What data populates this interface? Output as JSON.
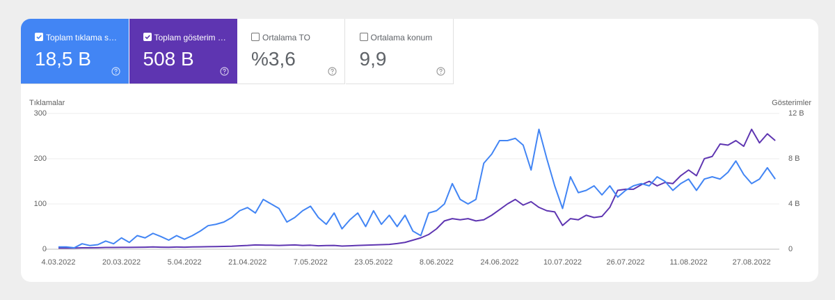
{
  "metrics": [
    {
      "label": "Toplam tıklama s…",
      "value": "18,5 B",
      "checked": true,
      "color": "#4285f4"
    },
    {
      "label": "Toplam gösterim …",
      "value": "508 B",
      "checked": true,
      "color": "#5e35b1"
    },
    {
      "label": "Ortalama TO",
      "value": "%3,6",
      "checked": false
    },
    {
      "label": "Ortalama konum",
      "value": "9,9",
      "checked": false
    }
  ],
  "chart_data": {
    "type": "line",
    "ylabel": "Tıklamalar",
    "y2label": "Gösterimler",
    "categories": [
      "4.03.2022",
      null,
      null,
      null,
      null,
      null,
      null,
      null,
      "20.03.2022",
      null,
      null,
      null,
      null,
      null,
      null,
      null,
      "5.04.2022",
      null,
      null,
      null,
      null,
      null,
      null,
      null,
      "21.04.2022",
      null,
      null,
      null,
      null,
      null,
      null,
      null,
      "7.05.2022",
      null,
      null,
      null,
      null,
      null,
      null,
      null,
      "23.05.2022",
      null,
      null,
      null,
      null,
      null,
      null,
      null,
      "8.06.2022",
      null,
      null,
      null,
      null,
      null,
      null,
      null,
      "24.06.2022",
      null,
      null,
      null,
      null,
      null,
      null,
      null,
      "10.07.2022",
      null,
      null,
      null,
      null,
      null,
      null,
      null,
      "26.07.2022",
      null,
      null,
      null,
      null,
      null,
      null,
      null,
      "11.08.2022",
      null,
      null,
      null,
      null,
      null,
      null,
      null,
      "27.08.2022",
      null,
      null,
      null
    ],
    "series": [
      {
        "name": "Tıklamalar",
        "color": "#4285f4",
        "values": [
          5,
          5,
          3,
          12,
          8,
          10,
          18,
          12,
          25,
          15,
          30,
          25,
          35,
          28,
          20,
          30,
          22,
          30,
          40,
          52,
          55,
          60,
          70,
          85,
          92,
          80,
          110,
          100,
          90,
          60,
          70,
          85,
          95,
          70,
          55,
          80,
          45,
          65,
          80,
          50,
          85,
          55,
          75,
          50,
          75,
          40,
          30,
          80,
          85,
          100,
          145,
          110,
          100,
          110,
          190,
          210,
          240,
          240,
          245,
          230,
          175,
          265,
          200,
          140,
          90,
          160,
          125,
          130,
          140,
          120,
          140,
          115,
          130,
          140,
          145,
          140,
          160,
          150,
          130,
          145,
          155,
          130,
          155,
          160,
          155,
          170,
          195,
          165,
          145,
          155,
          180,
          155
        ]
      },
      {
        "name": "Gösterimler",
        "color": "#5e35b1",
        "axis": "y2",
        "values": [
          100,
          100,
          100,
          120,
          120,
          130,
          150,
          150,
          160,
          160,
          170,
          180,
          200,
          180,
          170,
          190,
          180,
          200,
          210,
          220,
          230,
          250,
          260,
          300,
          330,
          380,
          360,
          350,
          330,
          350,
          380,
          330,
          350,
          300,
          320,
          330,
          280,
          300,
          330,
          350,
          380,
          400,
          420,
          500,
          600,
          800,
          1000,
          1300,
          1800,
          2500,
          2700,
          2600,
          2700,
          2500,
          2600,
          3000,
          3500,
          4000,
          4400,
          3900,
          4200,
          3700,
          3400,
          3300,
          2100,
          2700,
          2600,
          3000,
          2800,
          2900,
          3700,
          5200,
          5300,
          5300,
          5700,
          6000,
          5600,
          5900,
          5800,
          6500,
          7000,
          6500,
          8000,
          8200,
          9300,
          9200,
          9600,
          9100,
          10600,
          9400,
          10200,
          9600
        ]
      }
    ],
    "ylim": [
      0,
      300
    ],
    "yticks": [
      0,
      100,
      200,
      300
    ],
    "y2lim": [
      0,
      12000
    ],
    "y2ticks": [
      0,
      {
        "value": 4000,
        "label": "4 B"
      },
      {
        "value": 8000,
        "label": "8 B"
      },
      {
        "value": 12000,
        "label": "12 B"
      }
    ],
    "grid": true
  }
}
